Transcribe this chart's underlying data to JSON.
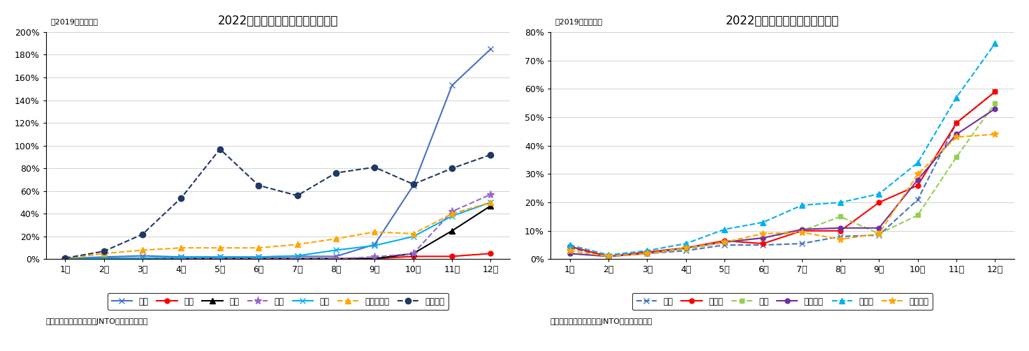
{
  "title_asia": "2022年訪日外客数推移（アジア）",
  "title_eu": "2022年訪日外客数推移（欧米）",
  "subtitle": "（2019年同月比）",
  "source": "（出典）日本政府観光局JNTO「訪日外客数」",
  "months": [
    "1月",
    "2月",
    "3月",
    "4月",
    "5月",
    "6月",
    "7月",
    "8月",
    "9月",
    "10月",
    "11月",
    "12月"
  ],
  "asia_order": [
    "韓国",
    "中国",
    "台湾",
    "香港",
    "タイ",
    "フィリピン",
    "ベトナム"
  ],
  "asia": {
    "韓国": [
      0.5,
      2.0,
      3.0,
      2.0,
      2.0,
      2.0,
      2.5,
      2.5,
      13.0,
      65.0,
      153.0,
      185.0
    ],
    "中国": [
      0.5,
      0.5,
      0.5,
      0.5,
      0.5,
      0.5,
      0.5,
      0.5,
      0.5,
      2.5,
      2.5,
      5.0
    ],
    "台湾": [
      0.5,
      0.5,
      0.5,
      0.5,
      0.5,
      0.5,
      0.5,
      0.5,
      0.5,
      5.0,
      25.0,
      47.0
    ],
    "香港": [
      0.5,
      0.5,
      0.5,
      0.5,
      0.5,
      0.5,
      0.5,
      0.5,
      2.0,
      5.0,
      42.0,
      57.0
    ],
    "タイ": [
      0.5,
      1.0,
      1.0,
      1.5,
      2.0,
      2.0,
      3.0,
      8.0,
      12.0,
      20.0,
      38.0,
      50.0
    ],
    "フィリピン": [
      0.5,
      5.0,
      8.0,
      10.0,
      10.0,
      10.0,
      13.0,
      18.0,
      24.0,
      22.5,
      40.0,
      50.0
    ],
    "ベトナム": [
      1.0,
      7.0,
      22.0,
      54.0,
      97.0,
      65.0,
      56.0,
      76.0,
      81.0,
      66.0,
      80.0,
      92.0
    ]
  },
  "asia_styles": {
    "韓国": {
      "color": "#4472C4",
      "marker": "x",
      "linestyle": "-",
      "markersize": 6,
      "linewidth": 1.5
    },
    "中国": {
      "color": "#FF0000",
      "marker": "o",
      "linestyle": "-",
      "markersize": 5,
      "linewidth": 1.5
    },
    "台湾": {
      "color": "#000000",
      "marker": "^",
      "linestyle": "-",
      "markersize": 6,
      "linewidth": 1.5
    },
    "香港": {
      "color": "#9966CC",
      "marker": "*",
      "linestyle": "--",
      "markersize": 8,
      "linewidth": 1.5
    },
    "タイ": {
      "color": "#00B0F0",
      "marker": "x",
      "linestyle": "-",
      "markersize": 6,
      "linewidth": 1.5
    },
    "フィリピン": {
      "color": "#FFA500",
      "marker": "^",
      "linestyle": "--",
      "markersize": 6,
      "linewidth": 1.5
    },
    "ベトナム": {
      "color": "#1F3864",
      "marker": "o",
      "linestyle": "--",
      "markersize": 6,
      "linewidth": 1.5
    }
  },
  "asia_ylim": [
    0,
    200
  ],
  "asia_yticks": [
    0,
    20,
    40,
    60,
    80,
    100,
    120,
    140,
    160,
    180,
    200
  ],
  "eu_order": [
    "米国",
    "カナダ",
    "英国",
    "フランス",
    "ドイツ",
    "イタリア"
  ],
  "eu": {
    "米国": [
      4.0,
      1.0,
      2.0,
      3.0,
      5.0,
      5.0,
      5.5,
      8.0,
      8.5,
      21.0,
      48.0,
      59.0
    ],
    "カナダ": [
      4.5,
      1.0,
      2.5,
      4.0,
      6.5,
      5.5,
      10.0,
      10.0,
      20.0,
      26.0,
      48.0,
      59.0
    ],
    "英国": [
      2.0,
      1.0,
      2.0,
      3.5,
      6.0,
      7.5,
      10.0,
      15.0,
      9.0,
      15.5,
      36.0,
      55.0
    ],
    "フランス": [
      2.0,
      1.0,
      2.0,
      4.0,
      6.0,
      7.5,
      10.5,
      11.0,
      11.0,
      28.0,
      44.0,
      53.0
    ],
    "ドイツ": [
      5.0,
      1.5,
      3.0,
      5.5,
      10.5,
      13.0,
      19.0,
      20.0,
      23.0,
      34.0,
      57.0,
      76.0
    ],
    "イタリア": [
      3.0,
      1.0,
      2.0,
      4.0,
      6.0,
      9.0,
      9.5,
      7.0,
      9.0,
      30.0,
      43.0,
      44.0
    ]
  },
  "eu_styles": {
    "米国": {
      "color": "#4472C4",
      "marker": "x",
      "linestyle": "--",
      "markersize": 6,
      "linewidth": 1.5
    },
    "カナダ": {
      "color": "#FF0000",
      "marker": "o",
      "linestyle": "-",
      "markersize": 5,
      "linewidth": 1.5
    },
    "英国": {
      "color": "#92D050",
      "marker": "s",
      "linestyle": "--",
      "markersize": 5,
      "linewidth": 1.5
    },
    "フランス": {
      "color": "#7030A0",
      "marker": "o",
      "linestyle": "-",
      "markersize": 5,
      "linewidth": 1.5
    },
    "ドイツ": {
      "color": "#00B0F0",
      "marker": "^",
      "linestyle": "--",
      "markersize": 6,
      "linewidth": 1.5
    },
    "イタリア": {
      "color": "#FFA500",
      "marker": "*",
      "linestyle": "--",
      "markersize": 7,
      "linewidth": 1.5
    }
  },
  "eu_ylim": [
    0,
    80
  ],
  "eu_yticks": [
    0,
    10,
    20,
    30,
    40,
    50,
    60,
    70,
    80
  ]
}
